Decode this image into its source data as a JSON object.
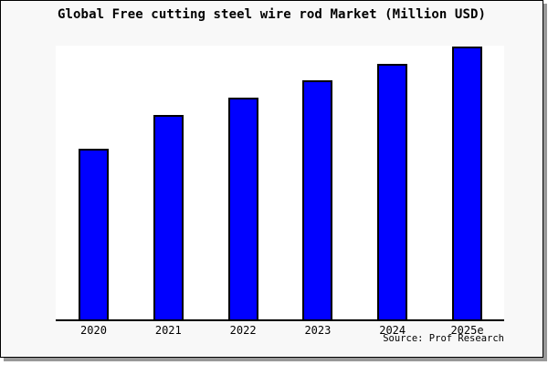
{
  "title": "Global Free cutting steel wire rod Market (Million USD)",
  "source_note": "Source: Prof Research",
  "colors": {
    "card_background": "#f8f8f8",
    "plot_background": "#ffffff",
    "bar_fill": "#0000ff",
    "bar_border": "#000000",
    "axis_line": "#000000",
    "card_border": "#000000",
    "drop_shadow": "#999999",
    "text": "#000000"
  },
  "chart_data": {
    "type": "bar",
    "title": "Global Free cutting steel wire rod Market (Million USD)",
    "categories": [
      "2020",
      "2021",
      "2022",
      "2023",
      "2024",
      "2025e"
    ],
    "values": [
      62.3,
      74.7,
      81.0,
      87.3,
      93.3,
      99.7
    ],
    "values_note": "y-axis has no tick labels in the image; values are bar heights as percent of the tallest-bar scale",
    "xlabel": "",
    "ylabel": "",
    "ylim": [
      0,
      100
    ],
    "y_axis_ticks": "none",
    "grid": false,
    "legend": false,
    "bar_color": "#0000ff",
    "annotations": [
      "Source: Prof Research"
    ]
  }
}
